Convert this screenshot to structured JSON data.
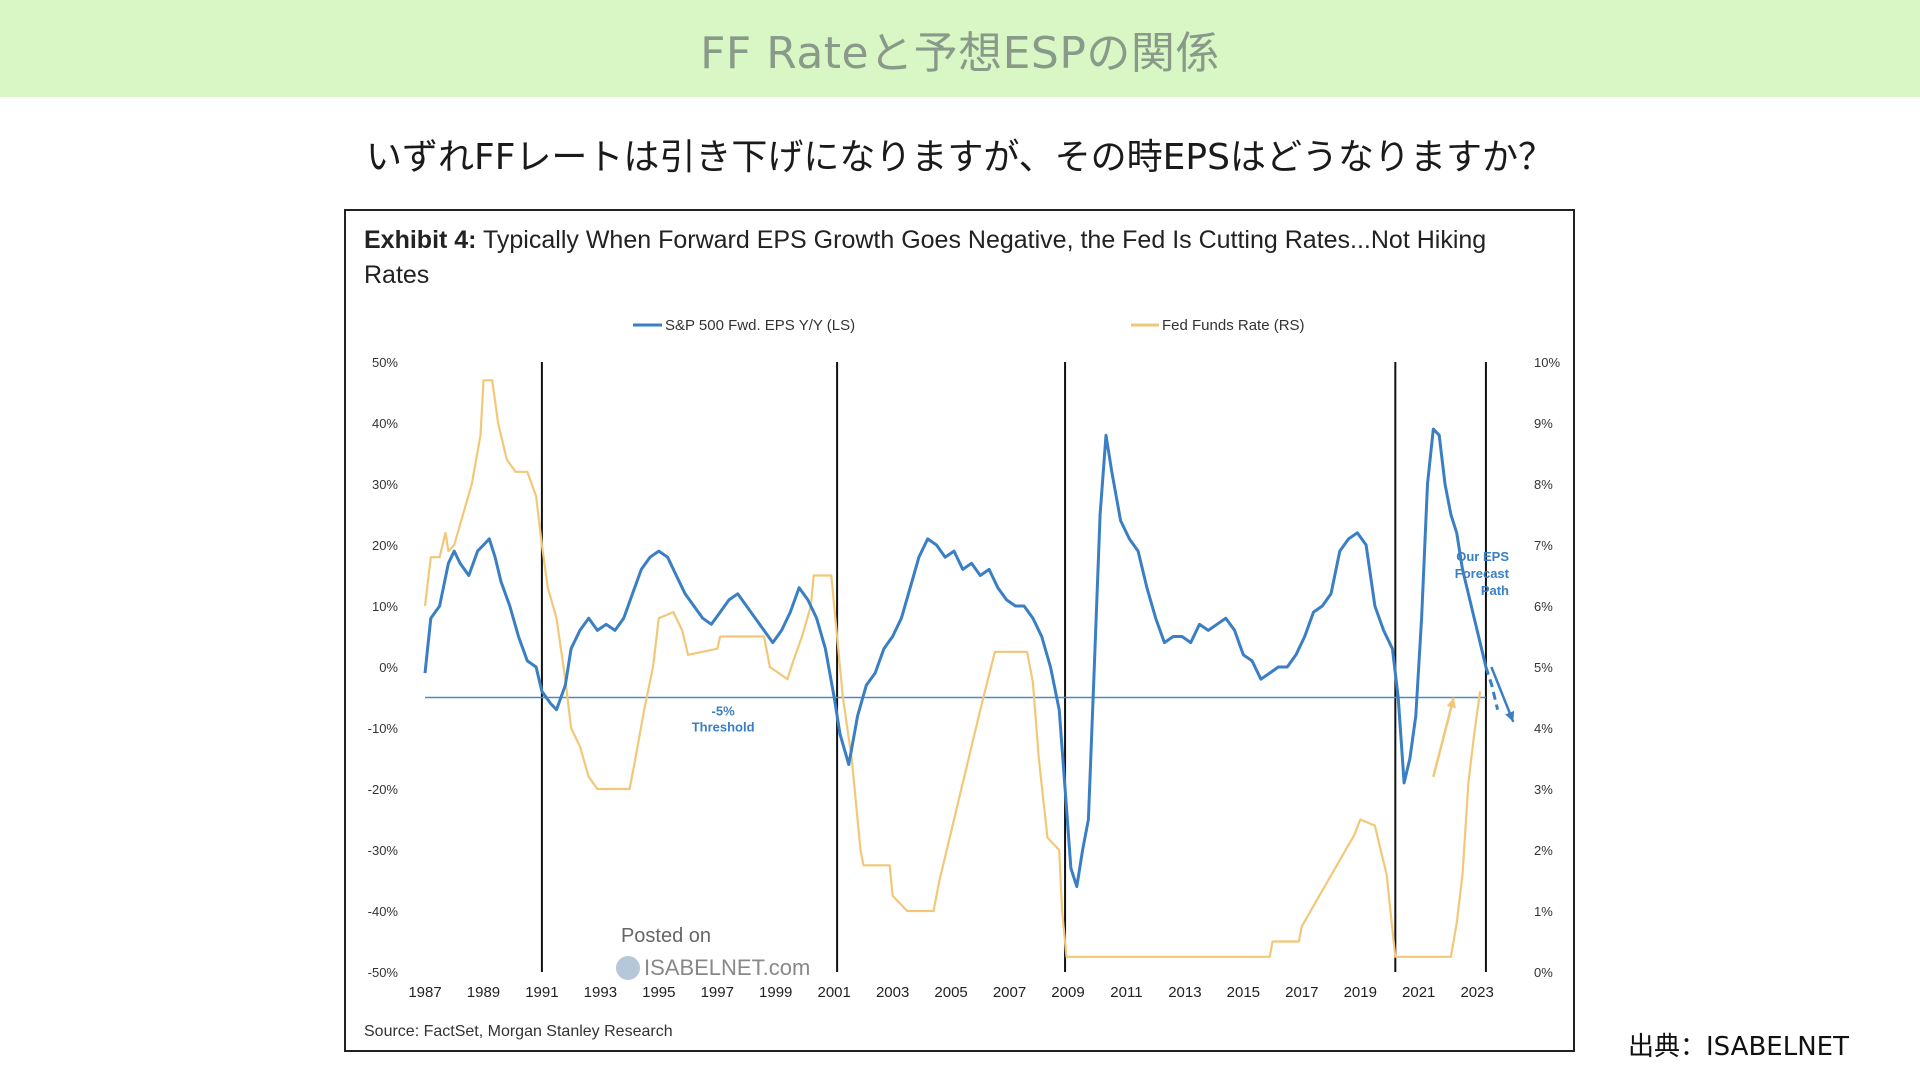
{
  "page": {
    "banner_title": "FF Rateと予想ESPの関係",
    "subtitle": "いずれFFレートは引き下げになりますが、その時EPSはどうなりますか？",
    "credit": "出典：ISABELNET",
    "banner_color": "#d9f7c4"
  },
  "chart_data": {
    "type": "line",
    "title_prefix": "Exhibit 4:",
    "title": "Typically When Forward EPS Growth Goes Negative, the Fed Is Cutting Rates...Not Hiking Rates",
    "source": "Source: FactSet, Morgan Stanley Research",
    "x_ticks": [
      "1987",
      "1989",
      "1991",
      "1993",
      "1995",
      "1997",
      "1999",
      "2001",
      "2003",
      "2005",
      "2007",
      "2009",
      "2011",
      "2013",
      "2015",
      "2017",
      "2019",
      "2021",
      "2023"
    ],
    "x_range": [
      1987,
      2024.5
    ],
    "y_left": {
      "ticks": [
        "50%",
        "40%",
        "30%",
        "20%",
        "10%",
        "0%",
        "-10%",
        "-20%",
        "-30%",
        "-40%",
        "-50%"
      ],
      "range": [
        -50,
        50
      ]
    },
    "y_right": {
      "ticks": [
        "10%",
        "9%",
        "8%",
        "7%",
        "6%",
        "5%",
        "4%",
        "3%",
        "2%",
        "1%",
        "0%"
      ],
      "range": [
        0,
        10
      ]
    },
    "legend_placement": "top",
    "series": [
      {
        "name": "S&P 500 Fwd. EPS Y/Y (LS)",
        "axis": "left",
        "color": "#3a7fc4",
        "points": [
          [
            1987.0,
            -1
          ],
          [
            1987.2,
            8
          ],
          [
            1987.5,
            10
          ],
          [
            1987.8,
            17
          ],
          [
            1988.0,
            19
          ],
          [
            1988.2,
            17
          ],
          [
            1988.5,
            15
          ],
          [
            1988.8,
            19
          ],
          [
            1989.0,
            20
          ],
          [
            1989.2,
            21
          ],
          [
            1989.4,
            18
          ],
          [
            1989.6,
            14
          ],
          [
            1989.9,
            10
          ],
          [
            1990.2,
            5
          ],
          [
            1990.5,
            1
          ],
          [
            1990.8,
            0
          ],
          [
            1991.0,
            -4
          ],
          [
            1991.3,
            -6
          ],
          [
            1991.5,
            -7
          ],
          [
            1991.8,
            -3
          ],
          [
            1992.0,
            3
          ],
          [
            1992.3,
            6
          ],
          [
            1992.6,
            8
          ],
          [
            1992.9,
            6
          ],
          [
            1993.2,
            7
          ],
          [
            1993.5,
            6
          ],
          [
            1993.8,
            8
          ],
          [
            1994.1,
            12
          ],
          [
            1994.4,
            16
          ],
          [
            1994.7,
            18
          ],
          [
            1995.0,
            19
          ],
          [
            1995.3,
            18
          ],
          [
            1995.6,
            15
          ],
          [
            1995.9,
            12
          ],
          [
            1996.2,
            10
          ],
          [
            1996.5,
            8
          ],
          [
            1996.8,
            7
          ],
          [
            1997.1,
            9
          ],
          [
            1997.4,
            11
          ],
          [
            1997.7,
            12
          ],
          [
            1998.0,
            10
          ],
          [
            1998.3,
            8
          ],
          [
            1998.6,
            6
          ],
          [
            1998.9,
            4
          ],
          [
            1999.2,
            6
          ],
          [
            1999.5,
            9
          ],
          [
            1999.8,
            13
          ],
          [
            2000.1,
            11
          ],
          [
            2000.4,
            8
          ],
          [
            2000.7,
            3
          ],
          [
            2001.0,
            -5
          ],
          [
            2001.2,
            -11
          ],
          [
            2001.5,
            -16
          ],
          [
            2001.8,
            -8
          ],
          [
            2002.1,
            -3
          ],
          [
            2002.4,
            -1
          ],
          [
            2002.7,
            3
          ],
          [
            2003.0,
            5
          ],
          [
            2003.3,
            8
          ],
          [
            2003.6,
            13
          ],
          [
            2003.9,
            18
          ],
          [
            2004.2,
            21
          ],
          [
            2004.5,
            20
          ],
          [
            2004.8,
            18
          ],
          [
            2005.1,
            19
          ],
          [
            2005.4,
            16
          ],
          [
            2005.7,
            17
          ],
          [
            2006.0,
            15
          ],
          [
            2006.3,
            16
          ],
          [
            2006.6,
            13
          ],
          [
            2006.9,
            11
          ],
          [
            2007.2,
            10
          ],
          [
            2007.5,
            10
          ],
          [
            2007.8,
            8
          ],
          [
            2008.1,
            5
          ],
          [
            2008.4,
            0
          ],
          [
            2008.7,
            -7
          ],
          [
            2008.9,
            -20
          ],
          [
            2009.1,
            -33
          ],
          [
            2009.3,
            -36
          ],
          [
            2009.5,
            -30
          ],
          [
            2009.7,
            -25
          ],
          [
            2009.9,
            0
          ],
          [
            2010.1,
            25
          ],
          [
            2010.3,
            38
          ],
          [
            2010.5,
            32
          ],
          [
            2010.8,
            24
          ],
          [
            2011.1,
            21
          ],
          [
            2011.4,
            19
          ],
          [
            2011.7,
            13
          ],
          [
            2012.0,
            8
          ],
          [
            2012.3,
            4
          ],
          [
            2012.6,
            5
          ],
          [
            2012.9,
            5
          ],
          [
            2013.2,
            4
          ],
          [
            2013.5,
            7
          ],
          [
            2013.8,
            6
          ],
          [
            2014.1,
            7
          ],
          [
            2014.4,
            8
          ],
          [
            2014.7,
            6
          ],
          [
            2015.0,
            2
          ],
          [
            2015.3,
            1
          ],
          [
            2015.6,
            -2
          ],
          [
            2015.9,
            -1
          ],
          [
            2016.2,
            0
          ],
          [
            2016.5,
            0
          ],
          [
            2016.8,
            2
          ],
          [
            2017.1,
            5
          ],
          [
            2017.4,
            9
          ],
          [
            2017.7,
            10
          ],
          [
            2018.0,
            12
          ],
          [
            2018.3,
            19
          ],
          [
            2018.6,
            21
          ],
          [
            2018.9,
            22
          ],
          [
            2019.2,
            20
          ],
          [
            2019.5,
            10
          ],
          [
            2019.8,
            6
          ],
          [
            2020.1,
            3
          ],
          [
            2020.3,
            -5
          ],
          [
            2020.5,
            -19
          ],
          [
            2020.7,
            -15
          ],
          [
            2020.9,
            -8
          ],
          [
            2021.1,
            8
          ],
          [
            2021.3,
            30
          ],
          [
            2021.5,
            39
          ],
          [
            2021.7,
            38
          ],
          [
            2021.9,
            30
          ],
          [
            2022.1,
            25
          ],
          [
            2022.3,
            22
          ],
          [
            2022.5,
            16
          ],
          [
            2022.7,
            12
          ],
          [
            2022.9,
            8
          ],
          [
            2023.1,
            4
          ],
          [
            2023.3,
            0
          ]
        ]
      },
      {
        "name": "Fed Funds Rate (RS)",
        "axis": "right",
        "color": "#f2c878",
        "points": [
          [
            1987.0,
            6.0
          ],
          [
            1987.2,
            6.8
          ],
          [
            1987.5,
            6.8
          ],
          [
            1987.7,
            7.2
          ],
          [
            1987.8,
            6.9
          ],
          [
            1988.0,
            7.0
          ],
          [
            1988.3,
            7.5
          ],
          [
            1988.6,
            8.0
          ],
          [
            1988.9,
            8.8
          ],
          [
            1989.0,
            9.7
          ],
          [
            1989.3,
            9.7
          ],
          [
            1989.5,
            9.0
          ],
          [
            1989.8,
            8.4
          ],
          [
            1990.1,
            8.2
          ],
          [
            1990.5,
            8.2
          ],
          [
            1990.8,
            7.8
          ],
          [
            1991.0,
            7.0
          ],
          [
            1991.2,
            6.3
          ],
          [
            1991.5,
            5.8
          ],
          [
            1991.8,
            4.8
          ],
          [
            1992.0,
            4.0
          ],
          [
            1992.3,
            3.7
          ],
          [
            1992.6,
            3.2
          ],
          [
            1992.9,
            3.0
          ],
          [
            1994.0,
            3.0
          ],
          [
            1994.2,
            3.5
          ],
          [
            1994.5,
            4.3
          ],
          [
            1994.8,
            5.0
          ],
          [
            1995.0,
            5.8
          ],
          [
            1995.5,
            5.9
          ],
          [
            1995.8,
            5.6
          ],
          [
            1996.0,
            5.2
          ],
          [
            1997.0,
            5.3
          ],
          [
            1997.1,
            5.5
          ],
          [
            1998.6,
            5.5
          ],
          [
            1998.8,
            5.0
          ],
          [
            1999.4,
            4.8
          ],
          [
            1999.6,
            5.1
          ],
          [
            1999.9,
            5.5
          ],
          [
            2000.2,
            6.0
          ],
          [
            2000.3,
            6.5
          ],
          [
            2000.9,
            6.5
          ],
          [
            2001.1,
            5.5
          ],
          [
            2001.3,
            4.5
          ],
          [
            2001.6,
            3.5
          ],
          [
            2001.9,
            2.0
          ],
          [
            2002.0,
            1.75
          ],
          [
            2002.9,
            1.75
          ],
          [
            2003.0,
            1.25
          ],
          [
            2003.5,
            1.0
          ],
          [
            2004.4,
            1.0
          ],
          [
            2004.6,
            1.5
          ],
          [
            2005.0,
            2.3
          ],
          [
            2005.5,
            3.3
          ],
          [
            2006.0,
            4.3
          ],
          [
            2006.5,
            5.25
          ],
          [
            2007.6,
            5.25
          ],
          [
            2007.8,
            4.75
          ],
          [
            2008.0,
            3.5
          ],
          [
            2008.3,
            2.2
          ],
          [
            2008.7,
            2.0
          ],
          [
            2008.8,
            1.0
          ],
          [
            2008.95,
            0.25
          ],
          [
            2015.9,
            0.25
          ],
          [
            2016.0,
            0.5
          ],
          [
            2016.9,
            0.5
          ],
          [
            2017.0,
            0.75
          ],
          [
            2017.3,
            1.0
          ],
          [
            2017.6,
            1.25
          ],
          [
            2017.9,
            1.5
          ],
          [
            2018.2,
            1.75
          ],
          [
            2018.5,
            2.0
          ],
          [
            2018.8,
            2.25
          ],
          [
            2019.0,
            2.5
          ],
          [
            2019.5,
            2.4
          ],
          [
            2019.7,
            2.0
          ],
          [
            2019.9,
            1.6
          ],
          [
            2020.2,
            0.25
          ],
          [
            2022.1,
            0.25
          ],
          [
            2022.3,
            0.8
          ],
          [
            2022.5,
            1.6
          ],
          [
            2022.7,
            3.1
          ],
          [
            2022.9,
            3.9
          ],
          [
            2023.1,
            4.6
          ]
        ]
      }
    ],
    "forecast": {
      "label_lines": [
        "Our EPS",
        "Forecast",
        "Path"
      ],
      "from": [
        2023.3,
        0
      ],
      "points": [
        [
          2023.3,
          0
        ],
        [
          2023.5,
          -3
        ],
        [
          2023.7,
          -7
        ]
      ],
      "solid": [
        [
          2023.35,
          0
        ],
        [
          2024.1,
          -9
        ]
      ]
    },
    "threshold": {
      "value": -5,
      "label_lines": [
        "-5%",
        "Threshold"
      ]
    },
    "vertical_lines": [
      1991.0,
      2001.1,
      2008.9,
      2020.2,
      2023.3
    ],
    "arrow_ffr": {
      "from": [
        2021.5,
        3.2
      ],
      "to": [
        2022.2,
        4.5
      ]
    },
    "watermark": {
      "line1": "Posted on",
      "line2": "ISABELNET.com"
    }
  }
}
